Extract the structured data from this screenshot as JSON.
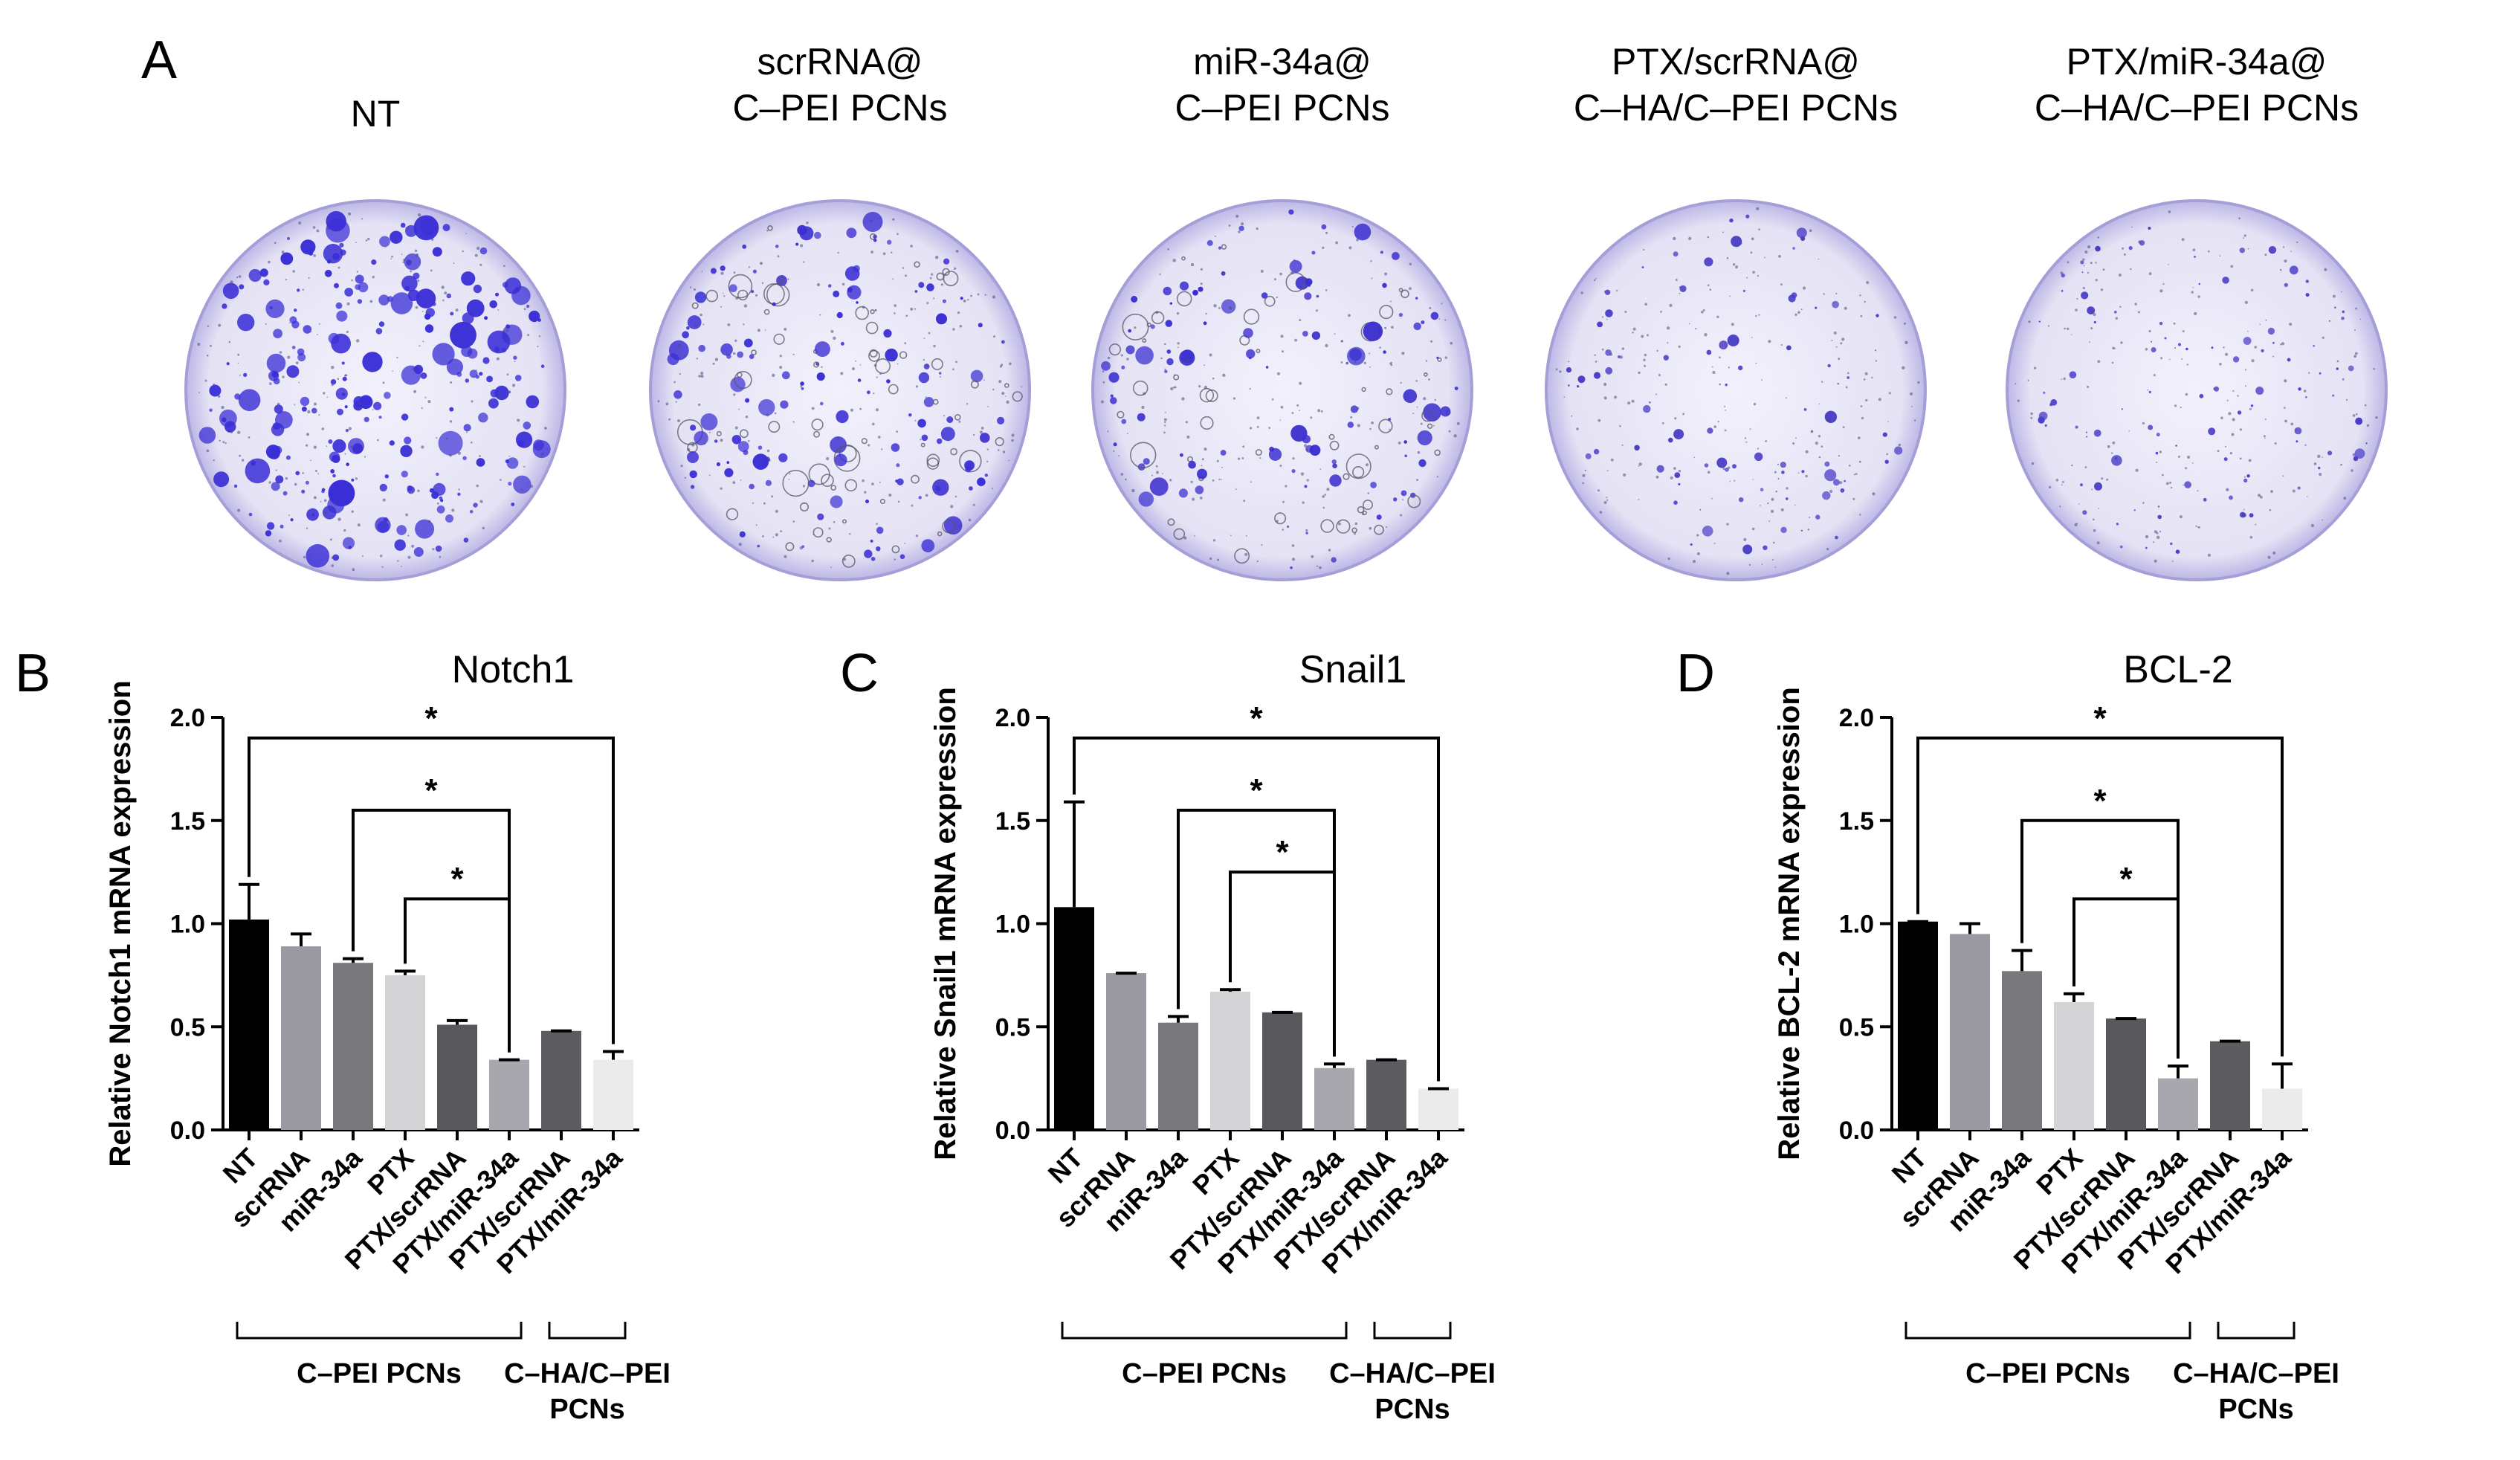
{
  "panel_a": {
    "letter": "A",
    "wells": [
      {
        "lines": [
          "NT"
        ],
        "density": 0.9,
        "size": 1.0,
        "color": "#3a2fd6"
      },
      {
        "lines": [
          "scrRNA@",
          "C–PEI PCNs"
        ],
        "density": 0.75,
        "size": 0.85,
        "color": "#3b2fd4"
      },
      {
        "lines": [
          "miR-34a@",
          "C–PEI PCNs"
        ],
        "density": 0.6,
        "size": 0.8,
        "color": "#3a2fcf"
      },
      {
        "lines": [
          "PTX/scrRNA@",
          "C–HA/C–PEI PCNs"
        ],
        "density": 0.35,
        "size": 0.45,
        "color": "#4b3fc6"
      },
      {
        "lines": [
          "PTX/miR-34a@",
          "C–HA/C–PEI PCNs"
        ],
        "density": 0.4,
        "size": 0.45,
        "color": "#4a3ec8"
      }
    ]
  },
  "chart_data": [
    {
      "panel": "B",
      "type": "bar",
      "title": "Notch1",
      "ylabel": "Relative Notch1 mRNA expression",
      "ylim": [
        0,
        2.0
      ],
      "yticks": [
        "0.0",
        "0.5",
        "1.0",
        "1.5",
        "2.0"
      ],
      "categories": [
        "NT",
        "scrRNA",
        "miR-34a",
        "PTX",
        "PTX/scrRNA",
        "PTX/miR-34a",
        "PTX/scrRNA",
        "PTX/miR-34a"
      ],
      "values": [
        1.02,
        0.89,
        0.81,
        0.75,
        0.51,
        0.34,
        0.48,
        0.34
      ],
      "errors": [
        0.17,
        0.06,
        0.02,
        0.02,
        0.02,
        0.0,
        0.0,
        0.04
      ],
      "colors": [
        "#000000",
        "#9b9aa0",
        "#77777c",
        "#d4d4d6",
        "#58585c",
        "#a8a7ad",
        "#5c5c60",
        "#ebebeb"
      ],
      "significance": [
        {
          "from": 0,
          "to": 7,
          "y": 1.9,
          "label": "*"
        },
        {
          "from": 2,
          "to": 5,
          "y": 1.55,
          "label": "*"
        },
        {
          "from": 3,
          "to": 5,
          "y": 1.12,
          "label": "*"
        }
      ],
      "groups": [
        {
          "from": 0,
          "to": 5,
          "lines": [
            "C–PEI PCNs"
          ]
        },
        {
          "from": 6,
          "to": 7,
          "lines": [
            "C–HA/C–PEI",
            "PCNs"
          ]
        }
      ]
    },
    {
      "panel": "C",
      "type": "bar",
      "title": "Snail1",
      "ylabel": "Relative Snail1 mRNA expression",
      "ylim": [
        0,
        2.0
      ],
      "yticks": [
        "0.0",
        "0.5",
        "1.0",
        "1.5",
        "2.0"
      ],
      "categories": [
        "NT",
        "scrRNA",
        "miR-34a",
        "PTX",
        "PTX/scrRNA",
        "PTX/miR-34a",
        "PTX/scrRNA",
        "PTX/miR-34a"
      ],
      "values": [
        1.08,
        0.76,
        0.52,
        0.67,
        0.57,
        0.3,
        0.34,
        0.2
      ],
      "errors": [
        0.51,
        0.0,
        0.03,
        0.01,
        0.0,
        0.02,
        0.0,
        0.0
      ],
      "colors": [
        "#000000",
        "#9b9aa0",
        "#77777c",
        "#d4d4d6",
        "#58585c",
        "#a8a7ad",
        "#5c5c60",
        "#ebebeb"
      ],
      "significance": [
        {
          "from": 0,
          "to": 7,
          "y": 1.9,
          "label": "*"
        },
        {
          "from": 2,
          "to": 5,
          "y": 1.55,
          "label": "*"
        },
        {
          "from": 3,
          "to": 5,
          "y": 1.25,
          "label": "*"
        }
      ],
      "groups": [
        {
          "from": 0,
          "to": 5,
          "lines": [
            "C–PEI PCNs"
          ]
        },
        {
          "from": 6,
          "to": 7,
          "lines": [
            "C–HA/C–PEI",
            "PCNs"
          ]
        }
      ]
    },
    {
      "panel": "D",
      "type": "bar",
      "title": "BCL-2",
      "ylabel": "Relative BCL-2 mRNA expression",
      "ylim": [
        0,
        2.0
      ],
      "yticks": [
        "0.0",
        "0.5",
        "1.0",
        "1.5",
        "2.0"
      ],
      "categories": [
        "NT",
        "scrRNA",
        "miR-34a",
        "PTX",
        "PTX/scrRNA",
        "PTX/miR-34a",
        "PTX/scrRNA",
        "PTX/miR-34a"
      ],
      "values": [
        1.01,
        0.95,
        0.77,
        0.62,
        0.54,
        0.25,
        0.43,
        0.2
      ],
      "errors": [
        0.0,
        0.05,
        0.1,
        0.04,
        0.0,
        0.06,
        0.0,
        0.12
      ],
      "colors": [
        "#000000",
        "#9b9aa0",
        "#77777c",
        "#d4d4d6",
        "#58585c",
        "#a8a7ad",
        "#5c5c60",
        "#ebebeb"
      ],
      "significance": [
        {
          "from": 0,
          "to": 7,
          "y": 1.9,
          "label": "*"
        },
        {
          "from": 2,
          "to": 5,
          "y": 1.5,
          "label": "*"
        },
        {
          "from": 3,
          "to": 5,
          "y": 1.12,
          "label": "*"
        }
      ],
      "groups": [
        {
          "from": 0,
          "to": 5,
          "lines": [
            "C–PEI PCNs"
          ]
        },
        {
          "from": 6,
          "to": 7,
          "lines": [
            "C–HA/C–PEI",
            "PCNs"
          ]
        }
      ]
    }
  ]
}
